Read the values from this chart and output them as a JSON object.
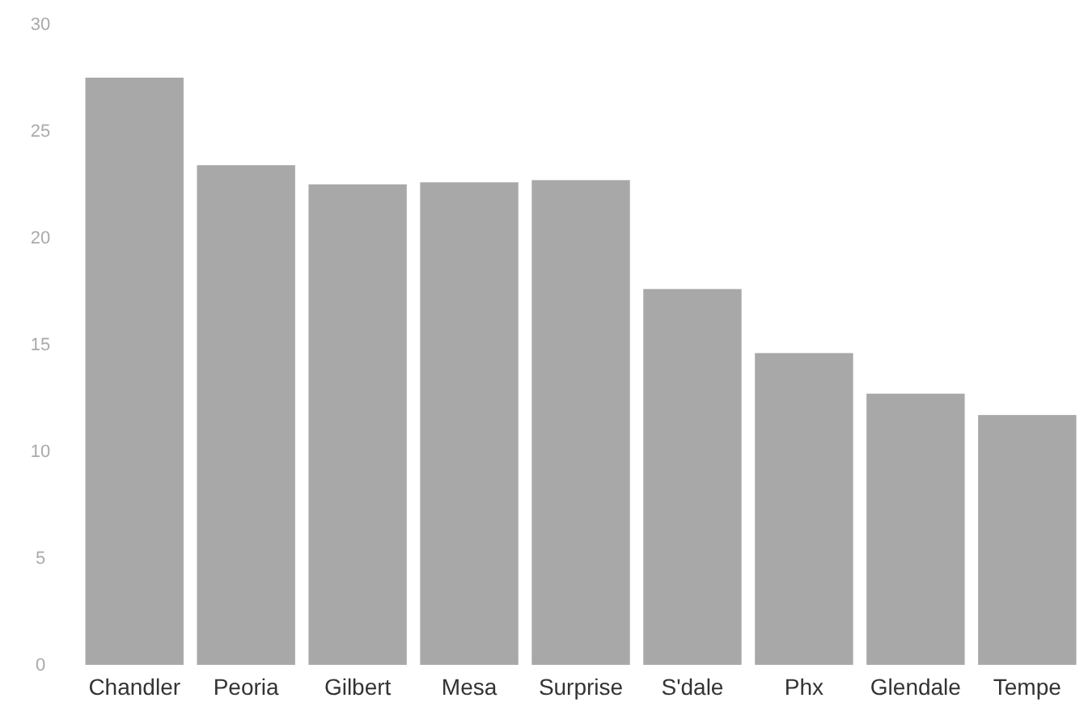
{
  "chart_data": {
    "type": "bar",
    "categories": [
      "Chandler",
      "Peoria",
      "Gilbert",
      "Mesa",
      "Surprise",
      "S'dale",
      "Phx",
      "Glendale",
      "Tempe"
    ],
    "values": [
      27.5,
      23.4,
      22.5,
      22.6,
      22.7,
      17.6,
      14.6,
      12.7,
      11.7
    ],
    "color": "#a8a8a8",
    "ylim": [
      0,
      30
    ],
    "yticks": [
      0,
      5,
      10,
      15,
      20,
      25,
      30
    ],
    "grid": false
  }
}
